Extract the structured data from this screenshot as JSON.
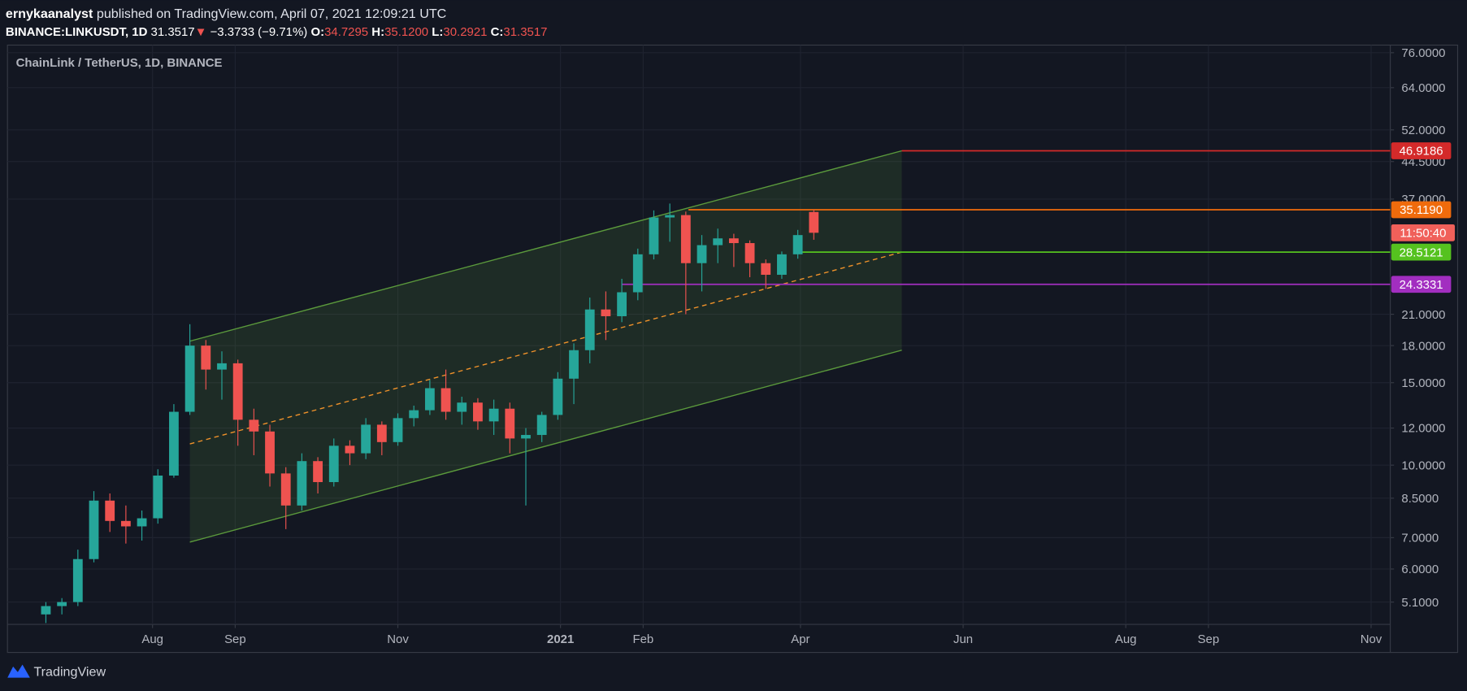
{
  "header": {
    "author": "ernykaanalyst",
    "published": "published on TradingView.com, April 07, 2021 12:09:21 UTC",
    "symbol": "BINANCE:LINKUSDT, 1D",
    "price": "31.3517",
    "arrow": "▼",
    "change": "−3.3733 (−9.71%)",
    "o_label": "O:",
    "open": "34.7295",
    "h_label": "H:",
    "high": "35.1200",
    "l_label": "L:",
    "low": "30.2921",
    "c_label": "C:",
    "close": "31.3517"
  },
  "chart_data": {
    "type": "candlestick",
    "title": "ChainLink / TetherUS, 1D, BINANCE",
    "log_scale": true,
    "grid": true,
    "up_color": "#26a69a",
    "down_color": "#ef5350",
    "x": [
      -40,
      -34,
      -28,
      -22,
      -16,
      -10,
      -4,
      2,
      8,
      14,
      20,
      26,
      32,
      38,
      44,
      50,
      56,
      62,
      68,
      74,
      80,
      86,
      92,
      98,
      104,
      110,
      116,
      122,
      128,
      134,
      140,
      146,
      152,
      158,
      164,
      170,
      176,
      182,
      188,
      194,
      200,
      206,
      212,
      218,
      224,
      230,
      236,
      242,
      248
    ],
    "candles": [
      [
        4.8,
        5.1,
        4.6,
        5.0
      ],
      [
        5.0,
        5.2,
        4.8,
        5.1
      ],
      [
        5.1,
        6.6,
        5.0,
        6.3
      ],
      [
        6.3,
        8.8,
        6.2,
        8.4
      ],
      [
        8.4,
        8.7,
        7.2,
        7.6
      ],
      [
        7.6,
        8.2,
        6.8,
        7.4
      ],
      [
        7.4,
        8.0,
        6.9,
        7.7
      ],
      [
        7.7,
        9.8,
        7.5,
        9.5
      ],
      [
        9.5,
        13.5,
        9.4,
        13.0
      ],
      [
        13.0,
        20.0,
        12.8,
        18.0
      ],
      [
        18.0,
        18.5,
        14.5,
        16.0
      ],
      [
        16.0,
        17.5,
        13.8,
        16.5
      ],
      [
        16.5,
        16.8,
        11.0,
        12.5
      ],
      [
        12.5,
        13.2,
        10.5,
        11.8
      ],
      [
        11.8,
        12.2,
        9.0,
        9.6
      ],
      [
        9.6,
        9.9,
        7.3,
        8.2
      ],
      [
        8.2,
        10.6,
        8.0,
        10.2
      ],
      [
        10.2,
        10.4,
        8.7,
        9.2
      ],
      [
        9.2,
        11.4,
        9.0,
        11.0
      ],
      [
        11.0,
        11.3,
        10.0,
        10.6
      ],
      [
        10.6,
        12.6,
        10.3,
        12.2
      ],
      [
        12.2,
        12.4,
        10.5,
        11.2
      ],
      [
        11.2,
        12.9,
        11.0,
        12.6
      ],
      [
        12.6,
        13.4,
        12.1,
        13.1
      ],
      [
        13.1,
        15.2,
        12.8,
        14.6
      ],
      [
        14.6,
        16.0,
        12.5,
        13.0
      ],
      [
        13.0,
        14.0,
        12.2,
        13.6
      ],
      [
        13.6,
        13.9,
        11.9,
        12.4
      ],
      [
        12.4,
        13.8,
        11.6,
        13.2
      ],
      [
        13.2,
        13.6,
        10.6,
        11.4
      ],
      [
        11.4,
        12.0,
        8.2,
        11.6
      ],
      [
        11.6,
        13.0,
        11.2,
        12.8
      ],
      [
        12.8,
        15.8,
        12.5,
        15.3
      ],
      [
        15.3,
        18.2,
        13.5,
        17.6
      ],
      [
        17.6,
        22.8,
        16.5,
        21.5
      ],
      [
        21.5,
        23.5,
        18.5,
        20.8
      ],
      [
        20.8,
        25.0,
        20.2,
        23.4
      ],
      [
        23.4,
        29.0,
        22.5,
        28.2
      ],
      [
        28.2,
        35.0,
        27.5,
        33.8
      ],
      [
        33.8,
        36.2,
        30.0,
        34.2
      ],
      [
        34.2,
        34.8,
        21.0,
        27.0
      ],
      [
        27.0,
        31.0,
        23.5,
        29.5
      ],
      [
        29.5,
        32.0,
        27.0,
        30.5
      ],
      [
        30.5,
        31.2,
        26.5,
        29.8
      ],
      [
        29.8,
        30.2,
        25.2,
        27.0
      ],
      [
        27.0,
        27.5,
        23.8,
        25.5
      ],
      [
        25.5,
        28.6,
        25.0,
        28.2
      ],
      [
        28.2,
        31.8,
        27.6,
        31.0
      ],
      [
        34.7295,
        35.12,
        30.2921,
        31.3517
      ]
    ],
    "xlim": [
      -54.4,
      464.2
    ],
    "xticks": [
      {
        "value": 0,
        "label": "Aug"
      },
      {
        "value": 31,
        "label": "Sep"
      },
      {
        "value": 92,
        "label": "Nov"
      },
      {
        "value": 153,
        "label": "2021"
      },
      {
        "value": 184,
        "label": "Feb"
      },
      {
        "value": 243,
        "label": "Apr"
      },
      {
        "value": 304,
        "label": "Jun"
      },
      {
        "value": 365,
        "label": "Aug"
      },
      {
        "value": 396,
        "label": "Sep"
      },
      {
        "value": 457,
        "label": "Nov"
      }
    ],
    "ylim": [
      4.57,
      78.9
    ],
    "yticks": [
      {
        "value": 76,
        "label": "76.0000"
      },
      {
        "value": 64,
        "label": "64.0000"
      },
      {
        "value": 52,
        "label": "52.0000"
      },
      {
        "value": 44.5,
        "label": "44.5000"
      },
      {
        "value": 37,
        "label": "37.0000"
      },
      {
        "value": 21,
        "label": "21.0000"
      },
      {
        "value": 18,
        "label": "18.0000"
      },
      {
        "value": 15,
        "label": "15.0000"
      },
      {
        "value": 12,
        "label": "12.0000"
      },
      {
        "value": 10,
        "label": "10.0000"
      },
      {
        "value": 8.5,
        "label": "8.5000"
      },
      {
        "value": 7,
        "label": "7.0000"
      },
      {
        "value": 6,
        "label": "6.0000"
      },
      {
        "value": 5.1,
        "label": "5.1000"
      }
    ],
    "channel": {
      "x": [
        14,
        281
      ],
      "upper": [
        18.4,
        46.9186
      ],
      "lower": [
        6.85,
        17.6
      ],
      "middle": [
        11.1,
        28.5121
      ],
      "color": "#5b9a3c",
      "mid_color": "#f0922a"
    },
    "levels": [
      {
        "start": 281,
        "price": 46.9186,
        "label": "46.9186",
        "color": "#d42a2a"
      },
      {
        "start": 201,
        "price": 35.119,
        "label": "35.1190",
        "color": "#f06b0c"
      },
      {
        "start": 242,
        "price": 28.5121,
        "label": "28.5121",
        "color": "#55c21f"
      },
      {
        "start": 176,
        "price": 24.3331,
        "label": "24.3331",
        "color": "#a22ec0"
      }
    ],
    "countdown": {
      "label": "11:50:40",
      "color": "#f0605a"
    }
  },
  "footer": {
    "brand": "TradingView"
  }
}
